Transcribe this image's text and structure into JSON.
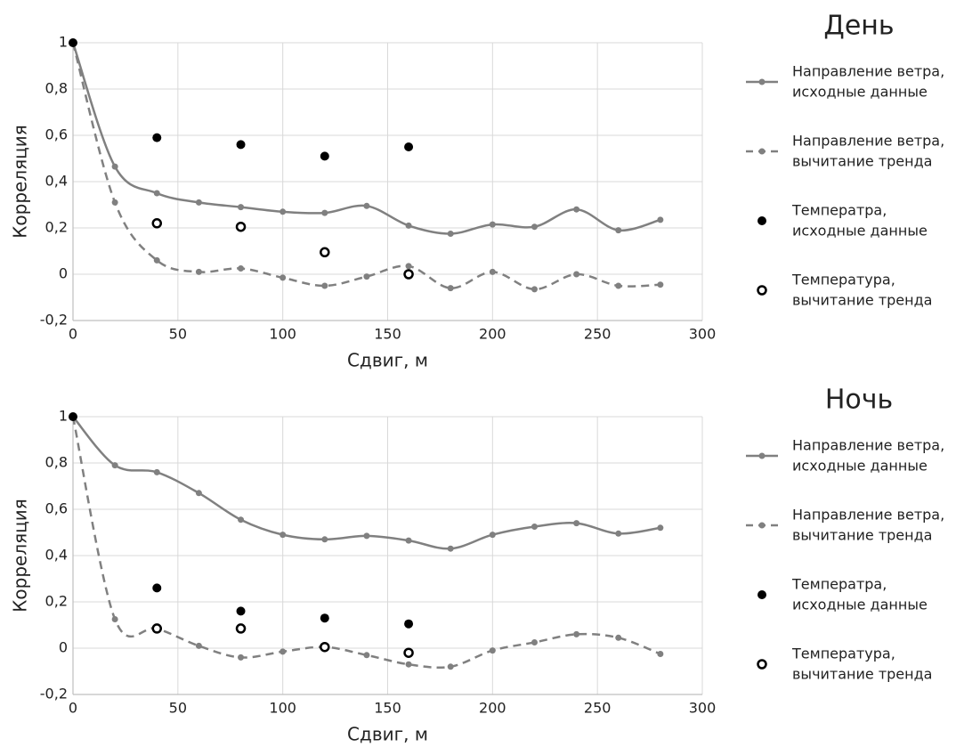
{
  "chart_data": [
    {
      "type": "line",
      "title": "День",
      "x_label": "Сдвиг, м",
      "y_label": "Корреляция",
      "xlim": [
        0,
        300
      ],
      "xticks": [
        0,
        50,
        100,
        150,
        200,
        250,
        300
      ],
      "ylim": [
        -0.2,
        1
      ],
      "yticks": [
        {
          "value": -0.2,
          "label": "-0,2"
        },
        0,
        {
          "value": 0.2,
          "label": "0,2"
        },
        {
          "value": 0.4,
          "label": "0,4"
        },
        {
          "value": 0.6,
          "label": "0,6"
        },
        {
          "value": 0.8,
          "label": "0,8"
        },
        1
      ],
      "grid": true,
      "legend": "right",
      "series": [
        {
          "name": "Направление ветра,\nисходные данные",
          "color": "#808080",
          "line": "solid",
          "marker": "dot",
          "x": [
            0,
            20,
            40,
            60,
            80,
            100,
            120,
            140,
            160,
            180,
            200,
            220,
            240,
            260,
            280
          ],
          "values": [
            1,
            0.465,
            0.35,
            0.31,
            0.29,
            0.27,
            0.265,
            0.295,
            0.21,
            0.175,
            0.215,
            0.205,
            0.28,
            0.19,
            0.235
          ]
        },
        {
          "name": "Направление ветра,\nвычитание тренда",
          "color": "#808080",
          "line": "dashed",
          "marker": "dot",
          "x": [
            0,
            20,
            40,
            60,
            80,
            100,
            120,
            140,
            160,
            180,
            200,
            220,
            240,
            260,
            280
          ],
          "values": [
            1,
            0.31,
            0.06,
            0.01,
            0.025,
            -0.015,
            -0.05,
            -0.01,
            0.035,
            -0.06,
            0.01,
            -0.065,
            0,
            -0.05,
            -0.045
          ]
        },
        {
          "name": "Температра,\nисходные данные",
          "color": "#000000",
          "line": "none",
          "marker": "filled",
          "x": [
            0,
            40,
            80,
            120,
            160
          ],
          "values": [
            1,
            0.59,
            0.56,
            0.51,
            0.55
          ]
        },
        {
          "name": "Температура,\nвычитание тренда",
          "color": "#000000",
          "line": "none",
          "marker": "open",
          "x": [
            40,
            80,
            120,
            160
          ],
          "values": [
            0.22,
            0.205,
            0.095,
            0
          ]
        }
      ]
    },
    {
      "type": "line",
      "title": "Ночь",
      "x_label": "Сдвиг, м",
      "y_label": "Корреляция",
      "xlim": [
        0,
        300
      ],
      "xticks": [
        0,
        50,
        100,
        150,
        200,
        250,
        300
      ],
      "ylim": [
        -0.2,
        1
      ],
      "yticks": [
        {
          "value": -0.2,
          "label": "-0,2"
        },
        0,
        {
          "value": 0.2,
          "label": "0,2"
        },
        {
          "value": 0.4,
          "label": "0,4"
        },
        {
          "value": 0.6,
          "label": "0,6"
        },
        {
          "value": 0.8,
          "label": "0,8"
        },
        1
      ],
      "grid": true,
      "legend": "right",
      "series": [
        {
          "name": "Направление ветра,\nисходные данные",
          "color": "#808080",
          "line": "solid",
          "marker": "dot",
          "x": [
            0,
            20,
            40,
            60,
            80,
            100,
            120,
            140,
            160,
            180,
            200,
            220,
            240,
            260,
            280
          ],
          "values": [
            1,
            0.79,
            0.76,
            0.67,
            0.555,
            0.49,
            0.47,
            0.485,
            0.465,
            0.43,
            0.49,
            0.525,
            0.54,
            0.495,
            0.52
          ]
        },
        {
          "name": "Направление ветра,\nвычитание тренда",
          "color": "#808080",
          "line": "dashed",
          "marker": "dot",
          "x": [
            0,
            20,
            40,
            60,
            80,
            100,
            120,
            140,
            160,
            180,
            200,
            220,
            240,
            260,
            280
          ],
          "values": [
            1,
            0.125,
            0.085,
            0.01,
            -0.04,
            -0.015,
            0.005,
            -0.03,
            -0.07,
            -0.08,
            -0.01,
            0.025,
            0.06,
            0.045,
            -0.025
          ]
        },
        {
          "name": "Температра,\nисходные данные",
          "color": "#000000",
          "line": "none",
          "marker": "filled",
          "x": [
            0,
            40,
            80,
            120,
            160
          ],
          "values": [
            1,
            0.26,
            0.16,
            0.13,
            0.105
          ]
        },
        {
          "name": "Температура,\nвычитание тренда",
          "color": "#000000",
          "line": "none",
          "marker": "open",
          "x": [
            40,
            80,
            120,
            160
          ],
          "values": [
            0.085,
            0.085,
            0.005,
            -0.02
          ]
        }
      ]
    }
  ]
}
